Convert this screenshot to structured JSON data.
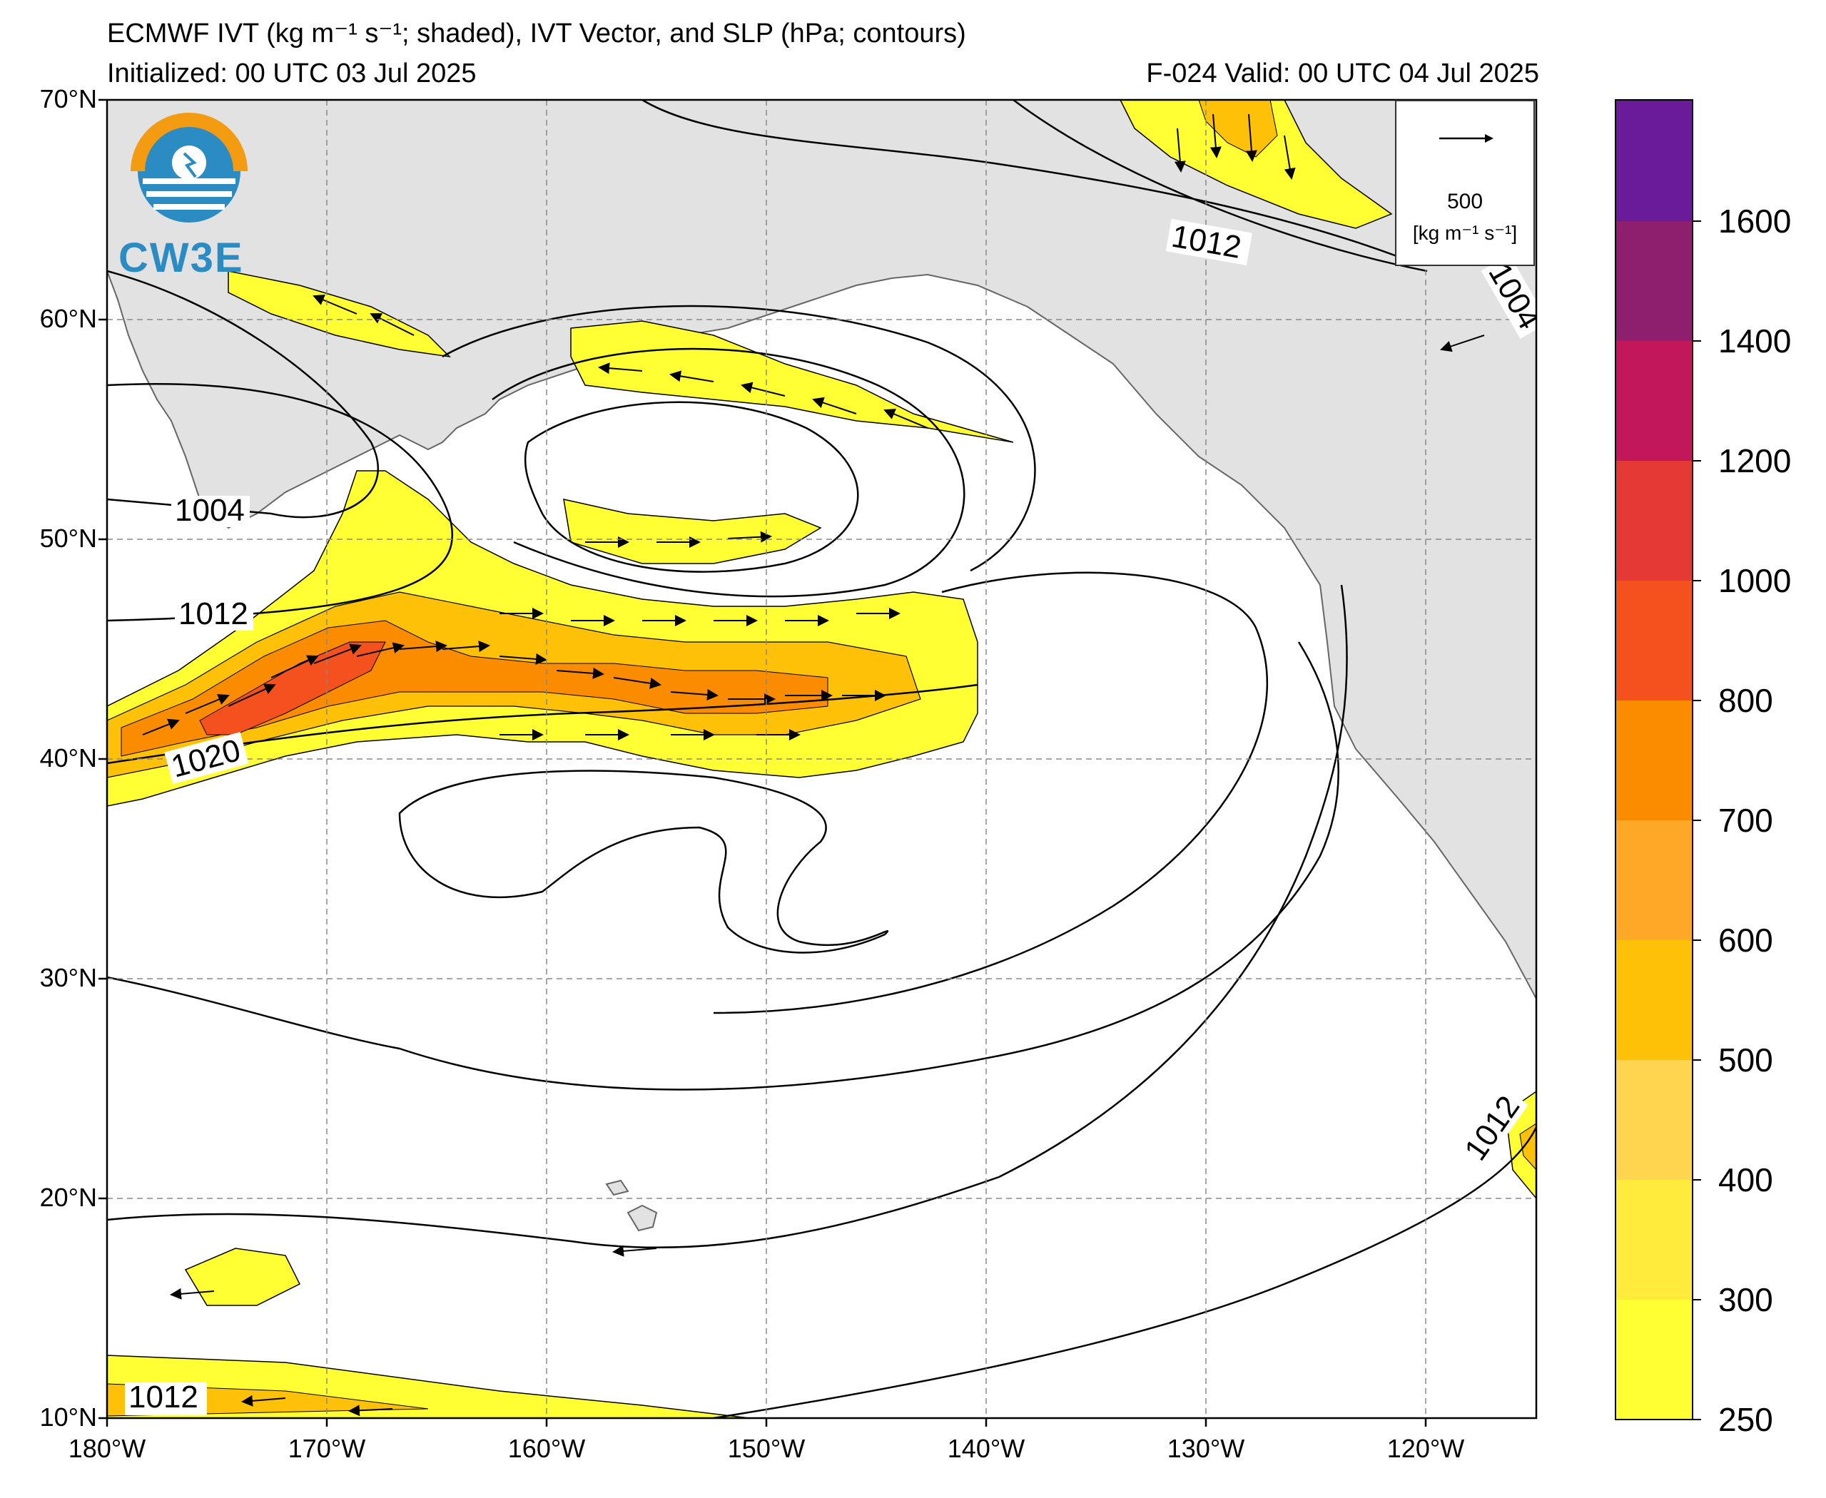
{
  "header": {
    "title_html": "ECMWF IVT (kg m⁻¹ s⁻¹; shaded), IVT Vector, and SLP (hPa; contours)",
    "initialized": "Initialized: 00 UTC 03 Jul 2025",
    "valid": "F-024  Valid: 00 UTC 04 Jul 2025"
  },
  "logo": {
    "text": "CW3E"
  },
  "axes": {
    "lat_labels": [
      "70°N",
      "60°N",
      "50°N",
      "40°N",
      "30°N",
      "20°N",
      "10°N"
    ],
    "lon_labels": [
      "180°W",
      "170°W",
      "160°W",
      "150°W",
      "140°W",
      "130°W",
      "120°W"
    ]
  },
  "legend": {
    "value": "500",
    "unit": "[kg m⁻¹ s⁻¹]"
  },
  "colorbar": {
    "labels": [
      "1600",
      "1400",
      "1200",
      "1000",
      "800",
      "700",
      "600",
      "500",
      "400",
      "300",
      "250"
    ],
    "colors": [
      "#6a1b9a",
      "#8e1e6e",
      "#c2185b",
      "#e53935",
      "#f4511e",
      "#fb8c00",
      "#ffa726",
      "#ffc107",
      "#ffd54f",
      "#ffeb3b",
      "#ffff33"
    ]
  },
  "contour_labels": {
    "c1004_w": "1004",
    "c1012_w": "1012",
    "c1020_w": "1020",
    "c1012_sw": "1012",
    "c1012_n": "1012",
    "c1004_ne": "1004",
    "c1012_e": "1012"
  },
  "colors": {
    "land": "#e2e2e2",
    "ocean": "#ffffff",
    "ivt_low": "#ffff33",
    "ivt_mid": "#ffc107",
    "ivt_high": "#fb8c00",
    "ivt_peak": "#f4511e",
    "grid": "#888888"
  }
}
